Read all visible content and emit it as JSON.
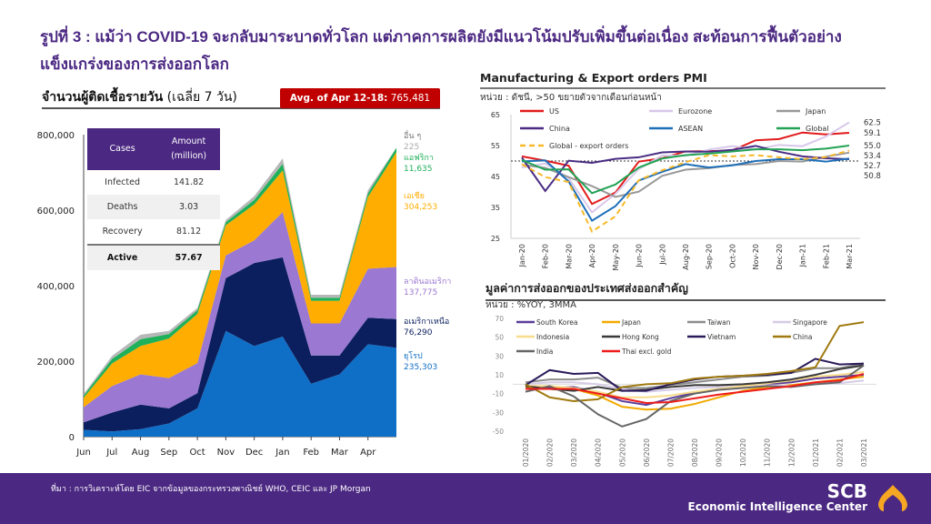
{
  "page": {
    "title": "รูปที่ 3 : แม้ว่า COVID-19 จะกลับมาระบาดทั่วโลก แต่ภาคการผลิตยังมีแนวโน้มปรับเพิ่มขึ้นต่อเนื่อง สะท้อนการฟื้นตัวอย่างแข็งแกร่งของการส่งออกโลก",
    "source": "ที่มา : การวิเคราะห์โดย EIC จากข้อมูลของกระทรวงพาณิชย์ WHO, CEIC และ JP Morgan",
    "brand": "SCB",
    "brand_sub": "Economic Intelligence Center",
    "brand_color": "#4b2882",
    "logo_color": "#f5a623"
  },
  "covid_panel": {
    "heading_bold": "จำนวนผู้ติดเชื้อรายวัน",
    "heading_normal": " (เฉลี่ย 7 วัน)",
    "avg_label": "Avg. of Apr 12-18:",
    "avg_value": "765,481",
    "table": {
      "headers": [
        "Cases",
        "Amount",
        "(million)"
      ],
      "rows": [
        {
          "label": "Infected",
          "value": "141.82"
        },
        {
          "label": "Deaths",
          "value": "3.03"
        },
        {
          "label": "Recovery",
          "value": "81.12"
        },
        {
          "label": "Active",
          "value": "57.67"
        }
      ]
    }
  },
  "pmi_panel": {
    "heading": "Manufacturing & Export orders PMI",
    "unit": "หน่วย : ดัชนี, >50 ขยายตัวจากเดือนก่อนหน้า"
  },
  "export_panel": {
    "heading": "มูลค่าการส่งออกของประเทศส่งออกสำคัญ",
    "unit": "หน่วย : %YOY, 3MMA"
  },
  "chart_data": [
    {
      "id": "covid",
      "type": "area",
      "title": "จำนวนผู้ติดเชื้อรายวัน (เฉลี่ย 7 วัน)",
      "stacked": true,
      "x": [
        "Jun",
        "Jul",
        "Aug",
        "Sep",
        "Oct",
        "Nov",
        "Dec",
        "Jan",
        "Feb",
        "Mar",
        "Apr",
        "Apr-18"
      ],
      "xticks": [
        "Jun",
        "Jul",
        "Aug",
        "Sep",
        "Oct",
        "Nov",
        "Dec",
        "Jan",
        "Feb",
        "Mar",
        "Apr"
      ],
      "ylim": [
        0,
        800000
      ],
      "yticks": [
        "0",
        "200,000",
        "400,000",
        "600,000",
        "800,000"
      ],
      "series": [
        {
          "name": "ยุโรป",
          "label_value": "235,303",
          "color": "#0f6fc6",
          "values": [
            18000,
            14000,
            20000,
            35000,
            75000,
            280000,
            240000,
            265000,
            140000,
            165000,
            245000,
            235303
          ]
        },
        {
          "name": "อเมริกาเหนือ",
          "label_value": "76,290",
          "color": "#0b1f5e",
          "values": [
            20000,
            50000,
            65000,
            40000,
            40000,
            140000,
            220000,
            210000,
            75000,
            50000,
            70000,
            76290
          ]
        },
        {
          "name": "ลาตินอเมริกา",
          "label_value": "137,775",
          "color": "#9b78d2",
          "values": [
            40000,
            70000,
            80000,
            80000,
            80000,
            60000,
            60000,
            120000,
            85000,
            85000,
            130000,
            137775
          ]
        },
        {
          "name": "เอเชีย",
          "label_value": "304,253",
          "color": "#ffad00",
          "values": [
            25000,
            60000,
            75000,
            105000,
            130000,
            80000,
            95000,
            110000,
            60000,
            60000,
            190000,
            304253
          ]
        },
        {
          "name": "แอฟริกา",
          "label_value": "11,635",
          "color": "#1fb05a",
          "values": [
            6000,
            12000,
            18000,
            12000,
            10000,
            8000,
            12000,
            18000,
            8000,
            8000,
            10000,
            11635
          ]
        },
        {
          "name": "อื่น ๆ",
          "label_value": "225",
          "color": "#b7b7b7",
          "values": [
            4000,
            8000,
            12000,
            8000,
            6000,
            6000,
            10000,
            14000,
            8000,
            8000,
            8000,
            225
          ]
        }
      ]
    },
    {
      "id": "pmi",
      "type": "line",
      "title": "Manufacturing & Export orders PMI",
      "x": [
        "Jan-20",
        "Feb-20",
        "Mar-20",
        "Apr-20",
        "May-20",
        "Jun-20",
        "Jul-20",
        "Aug-20",
        "Sep-20",
        "Oct-20",
        "Nov-20",
        "Dec-20",
        "Jan-21",
        "Feb-21",
        "Mar-21"
      ],
      "ylim": [
        25,
        65
      ],
      "yticks": [
        "25",
        "35",
        "45",
        "55",
        "65"
      ],
      "reference_line": 50,
      "series": [
        {
          "name": "US",
          "color": "#e21b1b",
          "dash": false,
          "values": [
            51.5,
            50.1,
            48.5,
            36.1,
            39.8,
            49.8,
            50.9,
            53.1,
            53.2,
            53.4,
            56.7,
            57.1,
            59.2,
            58.6,
            59.1
          ],
          "end_label": "59.1"
        },
        {
          "name": "Eurozone",
          "color": "#d8c8ea",
          "dash": false,
          "values": [
            47.9,
            49.2,
            44.5,
            33.4,
            39.4,
            47.4,
            51.8,
            51.7,
            53.7,
            54.8,
            53.8,
            55.2,
            54.8,
            57.9,
            62.5
          ],
          "end_label": "62.5"
        },
        {
          "name": "Japan",
          "color": "#999999",
          "dash": false,
          "values": [
            48.8,
            47.8,
            44.8,
            41.9,
            38.4,
            40.1,
            45.2,
            47.2,
            47.7,
            48.7,
            49.0,
            50.0,
            49.8,
            51.4,
            52.7
          ],
          "end_label": "52.7"
        },
        {
          "name": "China",
          "color": "#4a2c83",
          "dash": false,
          "values": [
            51.1,
            40.3,
            50.1,
            49.4,
            50.7,
            51.2,
            52.8,
            53.1,
            53.0,
            53.6,
            54.9,
            53.0,
            51.5,
            50.9,
            50.6
          ],
          "end_label": ""
        },
        {
          "name": "ASEAN",
          "color": "#1f6fb8",
          "dash": false,
          "values": [
            49.9,
            50.2,
            43.4,
            30.7,
            35.4,
            43.7,
            46.5,
            49.0,
            47.9,
            48.6,
            50.0,
            50.6,
            50.6,
            49.8,
            50.8
          ],
          "end_label": "50.8"
        },
        {
          "name": "Global",
          "color": "#22a354",
          "dash": false,
          "values": [
            50.3,
            47.2,
            47.3,
            39.6,
            42.4,
            47.9,
            50.8,
            51.9,
            52.4,
            53.1,
            53.8,
            53.8,
            53.5,
            54.0,
            55.0
          ],
          "end_label": "55.0"
        },
        {
          "name": "Global - export orders",
          "color": "#f7b92a",
          "dash": true,
          "values": [
            49.0,
            44.8,
            43.2,
            27.2,
            32.1,
            43.8,
            47.0,
            49.6,
            51.9,
            51.5,
            51.9,
            51.2,
            50.6,
            51.3,
            53.4
          ],
          "end_label": "53.4"
        }
      ]
    },
    {
      "id": "exports",
      "type": "line",
      "title": "มูลค่าการส่งออกของประเทศส่งออกสำคัญ",
      "x": [
        "01/2020",
        "02/2020",
        "03/2020",
        "04/2020",
        "05/2020",
        "06/2020",
        "07/2020",
        "08/2020",
        "09/2020",
        "10/2020",
        "11/2020",
        "12/2020",
        "01/2021",
        "02/2021",
        "03/2021"
      ],
      "ylim": [
        -50,
        70
      ],
      "yticks": [
        "-50",
        "-30",
        "-10",
        "10",
        "30",
        "50",
        "70"
      ],
      "series": [
        {
          "name": "South Korea",
          "color": "#5b3d9a",
          "values": [
            -3,
            -4,
            -3,
            -9,
            -18,
            -22,
            -15,
            -9,
            -5,
            -2,
            0,
            2,
            6,
            8,
            10
          ]
        },
        {
          "name": "Japan",
          "color": "#f2a900",
          "values": [
            -3,
            -2,
            -5,
            -12,
            -24,
            -27,
            -26,
            -21,
            -14,
            -7,
            -3,
            -1,
            2,
            5,
            8
          ]
        },
        {
          "name": "Taiwan",
          "color": "#8c8c8c",
          "values": [
            2,
            5,
            5,
            7,
            -4,
            -4,
            -1,
            2,
            5,
            8,
            9,
            12,
            17,
            17,
            22
          ]
        },
        {
          "name": "Singapore",
          "color": "#d6cce6",
          "values": [
            0,
            2,
            2,
            0,
            -5,
            -8,
            -6,
            -4,
            -3,
            -2,
            -1,
            -2,
            0,
            1,
            4
          ]
        },
        {
          "name": "Indonesia",
          "color": "#f7dc8c",
          "values": [
            -2,
            -2,
            -4,
            -8,
            -14,
            -14,
            -12,
            -8,
            -5,
            -2,
            1,
            4,
            8,
            10,
            13
          ]
        },
        {
          "name": "Hong Kong",
          "color": "#3a3a3a",
          "values": [
            -2,
            -5,
            -7,
            -3,
            -7,
            -6,
            -3,
            -1,
            -1,
            0,
            2,
            5,
            10,
            16,
            20
          ]
        },
        {
          "name": "Vietnam",
          "color": "#2a1a5a",
          "values": [
            -1,
            15,
            11,
            12,
            -7,
            -7,
            0,
            5,
            8,
            9,
            10,
            12,
            27,
            21,
            22
          ]
        },
        {
          "name": "China",
          "color": "#a07a10",
          "values": [
            0,
            -14,
            -18,
            -16,
            -3,
            0,
            1,
            6,
            8,
            9,
            11,
            14,
            18,
            62,
            66
          ]
        },
        {
          "name": "India",
          "color": "#666666",
          "values": [
            -8,
            -2,
            -13,
            -32,
            -45,
            -37,
            -18,
            -10,
            -6,
            -4,
            -2,
            -3,
            0,
            2,
            20
          ]
        },
        {
          "name": "Thai excl. gold",
          "legend_label": "Thai excl. gold",
          "color": "#ee1c1c",
          "values": [
            -5,
            -5,
            -5,
            -10,
            -15,
            -20,
            -19,
            -15,
            -11,
            -8,
            -5,
            -2,
            2,
            4,
            11
          ]
        }
      ],
      "legend_labels": [
        "South Korea",
        "Japan",
        "Taiwan",
        "Singapore",
        "Indonesia",
        "Hong Kong",
        "Vietnam",
        "China",
        "India",
        "Thai excl. gold"
      ]
    }
  ]
}
